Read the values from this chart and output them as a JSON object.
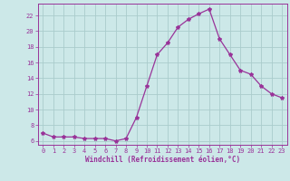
{
  "x": [
    0,
    1,
    2,
    3,
    4,
    5,
    6,
    7,
    8,
    9,
    10,
    11,
    12,
    13,
    14,
    15,
    16,
    17,
    18,
    19,
    20,
    21,
    22,
    23
  ],
  "y": [
    7.0,
    6.5,
    6.5,
    6.5,
    6.3,
    6.3,
    6.3,
    6.0,
    6.3,
    9.0,
    13.0,
    17.0,
    18.5,
    20.5,
    21.5,
    22.2,
    22.8,
    19.0,
    17.0,
    15.0,
    14.5,
    13.0,
    12.0,
    11.5
  ],
  "line_color": "#993399",
  "marker": "*",
  "marker_size": 3,
  "bg_color": "#cce8e8",
  "grid_color": "#aacccc",
  "xlabel": "Windchill (Refroidissement éolien,°C)",
  "ylabel": "",
  "ylim": [
    5.5,
    23.5
  ],
  "xlim": [
    -0.5,
    23.5
  ],
  "yticks": [
    6,
    8,
    10,
    12,
    14,
    16,
    18,
    20,
    22
  ],
  "xticks": [
    0,
    1,
    2,
    3,
    4,
    5,
    6,
    7,
    8,
    9,
    10,
    11,
    12,
    13,
    14,
    15,
    16,
    17,
    18,
    19,
    20,
    21,
    22,
    23
  ],
  "tick_color": "#993399",
  "label_color": "#993399",
  "axis_color": "#993399",
  "tick_fontsize": 5.0,
  "xlabel_fontsize": 5.5
}
